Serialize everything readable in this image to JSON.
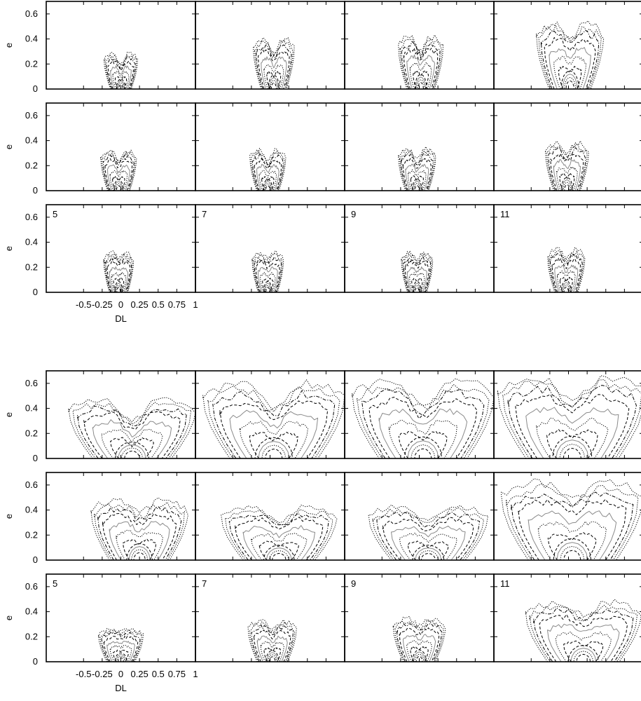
{
  "chart_data": {
    "type": "contour",
    "xlabel": "DL",
    "ylabel": "e",
    "xlim": [
      -1,
      1
    ],
    "ylim": [
      0,
      0.7
    ],
    "xticks": [
      -0.5,
      -0.25,
      0,
      0.25,
      0.5,
      0.75,
      1
    ],
    "xtick_labels": [
      "-0.5",
      "-0.25",
      "0",
      "0.25",
      "0.5",
      "0.75",
      "1"
    ],
    "yticks": [
      0,
      0.2,
      0.4,
      0.6
    ],
    "ytick_labels": [
      "0",
      "0.2",
      "0.4",
      "0.6"
    ],
    "column_labels": [
      "5",
      "7",
      "9",
      "11"
    ],
    "contour_styles": [
      "dotted",
      "dash-dot",
      "dashed",
      "solid-gray"
    ],
    "figures": [
      {
        "rows": [
          {
            "panels": [
              {
                "cx": 0.0,
                "w": 0.45,
                "h": 0.3,
                "notch": 0.35
              },
              {
                "cx": 0.05,
                "w": 0.55,
                "h": 0.42,
                "notch": 0.3
              },
              {
                "cx": 0.02,
                "w": 0.6,
                "h": 0.44,
                "notch": 0.3
              },
              {
                "cx": 0.02,
                "w": 0.9,
                "h": 0.55,
                "notch": 0.25
              }
            ]
          },
          {
            "panels": [
              {
                "cx": -0.03,
                "w": 0.48,
                "h": 0.34,
                "notch": 0.3
              },
              {
                "cx": -0.03,
                "w": 0.48,
                "h": 0.34,
                "notch": 0.3
              },
              {
                "cx": -0.03,
                "w": 0.5,
                "h": 0.35,
                "notch": 0.3
              },
              {
                "cx": -0.02,
                "w": 0.58,
                "h": 0.4,
                "notch": 0.25
              }
            ]
          },
          {
            "panels": [
              {
                "cx": -0.03,
                "w": 0.4,
                "h": 0.33,
                "notch": 0.15
              },
              {
                "cx": -0.03,
                "w": 0.42,
                "h": 0.33,
                "notch": 0.2
              },
              {
                "cx": -0.03,
                "w": 0.42,
                "h": 0.33,
                "notch": 0.2
              },
              {
                "cx": -0.03,
                "w": 0.5,
                "h": 0.36,
                "notch": 0.25
              }
            ]
          }
        ]
      },
      {
        "rows": [
          {
            "panels": [
              {
                "cx": 0.15,
                "w": 1.7,
                "h": 0.5,
                "notch": 0.4
              },
              {
                "cx": 0.05,
                "w": 1.9,
                "h": 0.63,
                "notch": 0.35
              },
              {
                "cx": 0.05,
                "w": 1.9,
                "h": 0.65,
                "notch": 0.35
              },
              {
                "cx": 0.05,
                "w": 2.0,
                "h": 0.68,
                "notch": 0.3
              }
            ]
          },
          {
            "panels": [
              {
                "cx": 0.25,
                "w": 1.3,
                "h": 0.5,
                "notch": 0.25
              },
              {
                "cx": 0.12,
                "w": 1.55,
                "h": 0.45,
                "notch": 0.3
              },
              {
                "cx": 0.12,
                "w": 1.6,
                "h": 0.45,
                "notch": 0.3
              },
              {
                "cx": 0.05,
                "w": 1.9,
                "h": 0.65,
                "notch": 0.25
              }
            ]
          },
          {
            "panels": [
              {
                "cx": 0.0,
                "w": 0.6,
                "h": 0.27,
                "notch": 0.1
              },
              {
                "cx": 0.03,
                "w": 0.65,
                "h": 0.34,
                "notch": 0.25
              },
              {
                "cx": 0.0,
                "w": 0.7,
                "h": 0.36,
                "notch": 0.2
              },
              {
                "cx": 0.2,
                "w": 1.55,
                "h": 0.5,
                "notch": 0.25
              }
            ]
          }
        ]
      }
    ]
  }
}
